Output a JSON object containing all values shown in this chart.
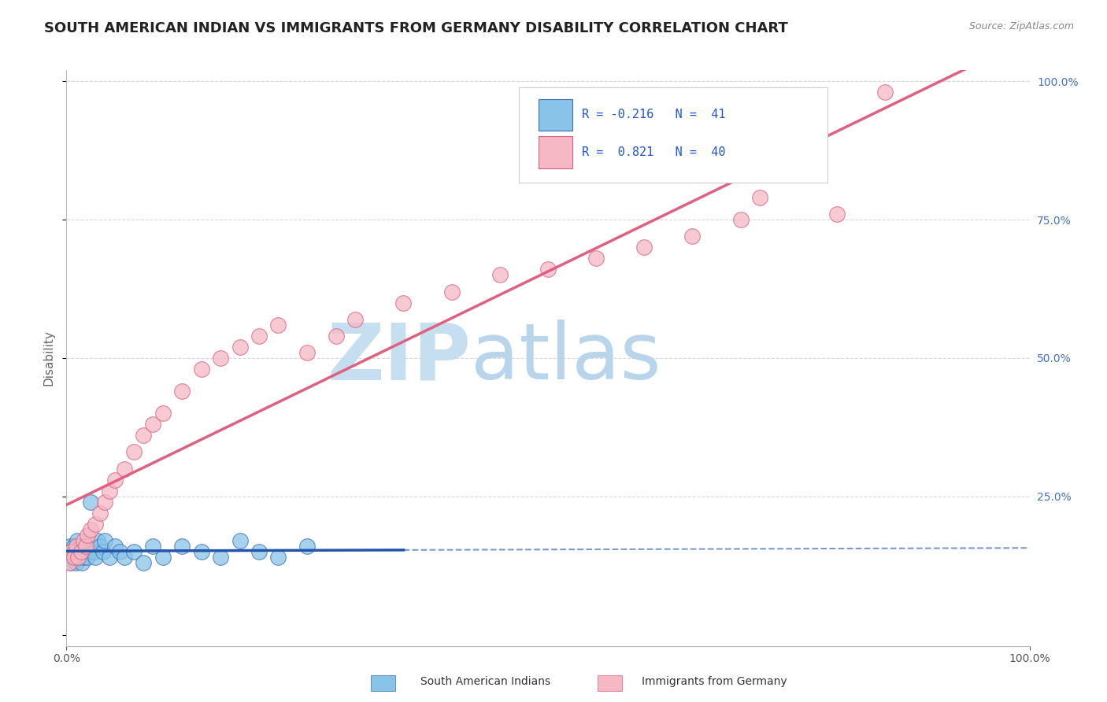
{
  "title": "SOUTH AMERICAN INDIAN VS IMMIGRANTS FROM GERMANY DISABILITY CORRELATION CHART",
  "source": "Source: ZipAtlas.com",
  "ylabel": "Disability",
  "xlim": [
    0.0,
    1.0
  ],
  "ylim": [
    -0.02,
    1.02
  ],
  "color_blue": "#89c4e8",
  "color_blue_dark": "#3d6db5",
  "color_pink": "#f5b8c4",
  "color_pink_dark": "#d96080",
  "color_trend_blue": "#2255aa",
  "color_trend_pink": "#e06080",
  "watermark_zip_color": "#c8e4f5",
  "watermark_atlas_color": "#c8ddf0",
  "background_color": "#ffffff",
  "grid_color": "#d8d8d8",
  "blue_x": [
    0.002,
    0.004,
    0.005,
    0.006,
    0.007,
    0.008,
    0.009,
    0.01,
    0.011,
    0.012,
    0.013,
    0.014,
    0.015,
    0.016,
    0.017,
    0.018,
    0.019,
    0.02,
    0.022,
    0.025,
    0.028,
    0.03,
    0.032,
    0.035,
    0.038,
    0.04,
    0.045,
    0.05,
    0.055,
    0.06,
    0.07,
    0.08,
    0.09,
    0.1,
    0.12,
    0.14,
    0.16,
    0.18,
    0.2,
    0.22,
    0.25
  ],
  "blue_y": [
    0.14,
    0.16,
    0.13,
    0.15,
    0.14,
    0.16,
    0.15,
    0.13,
    0.17,
    0.14,
    0.15,
    0.14,
    0.16,
    0.13,
    0.15,
    0.14,
    0.16,
    0.15,
    0.14,
    0.24,
    0.15,
    0.14,
    0.17,
    0.16,
    0.15,
    0.17,
    0.14,
    0.16,
    0.15,
    0.14,
    0.15,
    0.13,
    0.16,
    0.14,
    0.16,
    0.15,
    0.14,
    0.17,
    0.15,
    0.14,
    0.16
  ],
  "pink_x": [
    0.003,
    0.005,
    0.008,
    0.01,
    0.012,
    0.015,
    0.018,
    0.02,
    0.022,
    0.025,
    0.03,
    0.035,
    0.04,
    0.045,
    0.05,
    0.06,
    0.07,
    0.08,
    0.09,
    0.1,
    0.12,
    0.14,
    0.16,
    0.18,
    0.2,
    0.22,
    0.25,
    0.28,
    0.3,
    0.35,
    0.4,
    0.45,
    0.5,
    0.55,
    0.6,
    0.65,
    0.7,
    0.72,
    0.8,
    0.85
  ],
  "pink_y": [
    0.13,
    0.15,
    0.14,
    0.16,
    0.14,
    0.15,
    0.17,
    0.16,
    0.18,
    0.19,
    0.2,
    0.22,
    0.24,
    0.26,
    0.28,
    0.3,
    0.33,
    0.36,
    0.38,
    0.4,
    0.44,
    0.48,
    0.5,
    0.52,
    0.54,
    0.56,
    0.51,
    0.54,
    0.57,
    0.6,
    0.62,
    0.65,
    0.66,
    0.68,
    0.7,
    0.72,
    0.75,
    0.79,
    0.76,
    0.98
  ],
  "legend_label1": "South American Indians",
  "legend_label2": "Immigrants from Germany"
}
